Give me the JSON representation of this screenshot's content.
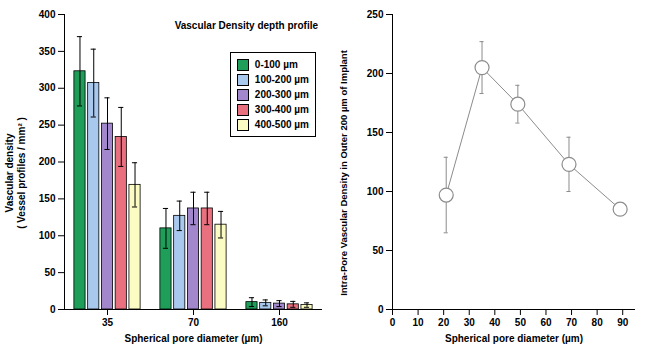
{
  "chart_data": [
    {
      "type": "bar",
      "title": "Vascular Density depth profile",
      "x_label": "Spherical pore diameter (µm)",
      "y_label": [
        "Vascular density",
        "( Vessel profiles / mm² )"
      ],
      "categories": [
        "35",
        "70",
        "160"
      ],
      "series": [
        {
          "name": "0-100 µm",
          "color": "#1f9e5a",
          "values": [
            323,
            110,
            10
          ],
          "errors": [
            47,
            27,
            6
          ]
        },
        {
          "name": "100-200 µm",
          "color": "#a9c8ee",
          "values": [
            307,
            127,
            9
          ],
          "errors": [
            46,
            20,
            4
          ]
        },
        {
          "name": "200-300 µm",
          "color": "#a287cc",
          "values": [
            252,
            137,
            8
          ],
          "errors": [
            35,
            22,
            4
          ]
        },
        {
          "name": "300-400 µm",
          "color": "#e8707f",
          "values": [
            234,
            137,
            7
          ],
          "errors": [
            40,
            22,
            4
          ]
        },
        {
          "name": "400-500 µm",
          "color": "#fbfbc4",
          "values": [
            169,
            115,
            6
          ],
          "errors": [
            30,
            18,
            3
          ]
        }
      ],
      "ylim": [
        0,
        400
      ],
      "yticks": [
        0,
        50,
        100,
        150,
        200,
        250,
        300,
        350,
        400
      ],
      "legend": "upper right"
    },
    {
      "type": "line",
      "x_label": "Spherical pore diameter (µm)",
      "y_label": "Intra-Pore Vascular Density in Outer 200 µm of Implant",
      "x": [
        21,
        35,
        49,
        69,
        89
      ],
      "values": [
        97,
        205,
        174,
        123,
        85
      ],
      "errors": [
        32,
        22,
        16,
        23,
        5
      ],
      "color": "#8c8c8c",
      "marker": "circle",
      "xlim": [
        0,
        95
      ],
      "xticks": [
        0,
        10,
        20,
        30,
        40,
        50,
        60,
        70,
        80,
        90
      ],
      "ylim": [
        0,
        250
      ],
      "yticks": [
        0,
        50,
        100,
        150,
        200,
        250
      ]
    }
  ]
}
